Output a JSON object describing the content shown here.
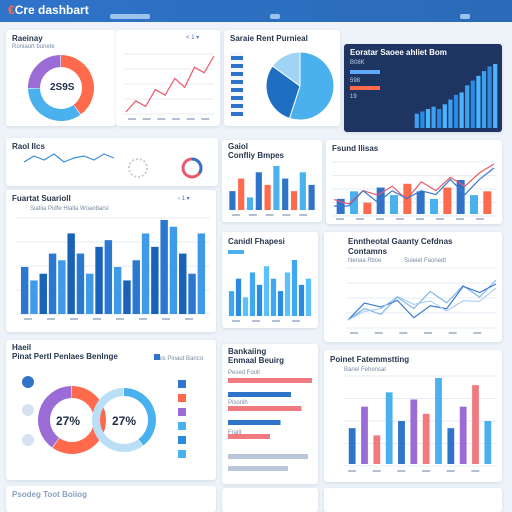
{
  "app": {
    "title": "Cre dashbart",
    "nav": [
      "",
      "",
      ""
    ]
  },
  "colors": {
    "primary": "#2f74c9",
    "accent": "#ff6a4d",
    "light": "#4ab0ee",
    "purple": "#9b6bd6"
  },
  "cards": {
    "c1": {
      "title": "Raeinay",
      "subtitle": "Roniaurt bunete",
      "control": "< 1  ▾",
      "donut_value": "2S9S"
    },
    "c2": {
      "title": "Saraie Rent Purnieal"
    },
    "c3": {
      "title": "Eoratar Saoee ahliet Bom",
      "legend": [
        "B08K",
        "598",
        "19"
      ]
    },
    "c4": {
      "title": "Raol Ilcs"
    },
    "c5": {
      "title": "Gaiol",
      "subtitle": "Confliy Bmpes"
    },
    "c6": {
      "title": "Fsund Ilisas"
    },
    "c7": {
      "title": "Fuartat Suarioll",
      "subtitle": "Siatiia  Pidfe  Hialla  Woaobarsl",
      "control": "‹ 1 ▾"
    },
    "c8": {
      "title": "Canidl Fhapesi"
    },
    "c9": {
      "title": "Enntheotal Gaanty Cefdnas",
      "subtitle": "Contamns",
      "legend": [
        "Nenaa Rtioe",
        "Suieiet Faonedt"
      ]
    },
    "c10": {
      "title": "Haeil",
      "subtitle": "Pinat Pertl Penlaes Benlnge",
      "legend_title": "Pois Pinaut Banco",
      "value_a": "27%",
      "value_b": "27%"
    },
    "c11": {
      "title": "Bankaiing",
      "subtitle": "Enmaal Beuirg",
      "labels": [
        "Pesed Foull",
        "Pisonlh",
        "Frailt"
      ]
    },
    "c12": {
      "title": "Poinet Fatemmstting",
      "subtitle": "Bariel Fehensal"
    },
    "c13": {
      "title": "Psodeg Toot Boiiog"
    }
  },
  "chart_data": [
    {
      "type": "pie",
      "values": [
        40,
        35,
        25
      ]
    },
    {
      "type": "line",
      "y": [
        2,
        3,
        2.5,
        4,
        3.5,
        5,
        4.2,
        6,
        5.5,
        7
      ]
    },
    {
      "type": "pie",
      "values": [
        55,
        30,
        15
      ]
    },
    {
      "type": "bar",
      "values": [
        6,
        7,
        8,
        9,
        8,
        10,
        12,
        14,
        15,
        18,
        20,
        22,
        24,
        26,
        27
      ]
    },
    {
      "type": "line",
      "y": [
        3,
        6,
        4,
        7,
        3,
        5,
        6,
        4,
        7,
        5
      ]
    },
    {
      "type": "bar",
      "values": [
        3,
        5,
        2,
        6,
        4,
        7,
        5,
        3,
        6,
        4
      ]
    },
    {
      "type": "line",
      "y": [
        4,
        3,
        6,
        5,
        7,
        4,
        8,
        6,
        9,
        7,
        10,
        12
      ]
    },
    {
      "type": "bar",
      "values": [
        7,
        5,
        6,
        9,
        8,
        12,
        9,
        6,
        10,
        11,
        7,
        5,
        8,
        12,
        10,
        14,
        13,
        9,
        6,
        12
      ]
    },
    {
      "type": "bar",
      "values": [
        4,
        6,
        3,
        7,
        5,
        8,
        6,
        4,
        7,
        9,
        5,
        6
      ]
    },
    {
      "type": "line",
      "y": [
        3,
        4,
        3.5,
        5,
        4,
        5.5,
        4.5,
        6,
        5,
        6.5
      ]
    },
    {
      "type": "pie",
      "values": [
        60,
        40
      ]
    },
    {
      "type": "bar",
      "values": [
        8,
        6,
        7,
        5,
        4
      ]
    },
    {
      "type": "bar",
      "values": [
        5,
        8,
        4,
        10,
        6,
        9,
        7,
        12,
        5,
        8,
        11,
        6
      ]
    }
  ]
}
